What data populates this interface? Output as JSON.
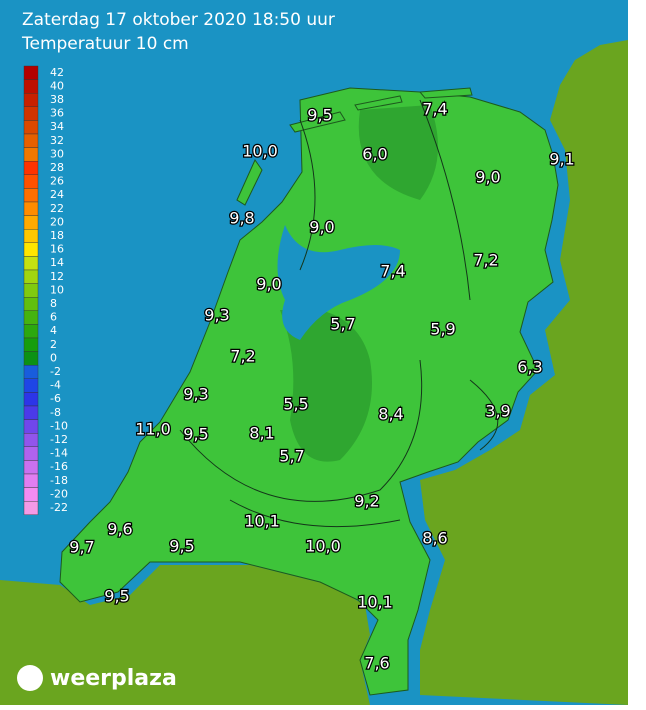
{
  "header": {
    "title": "Zaterdag 17 oktober 2020 18:50 uur",
    "subtitle": "Temperatuur 10 cm"
  },
  "legend": {
    "ticks": [
      42,
      40,
      38,
      36,
      34,
      32,
      30,
      28,
      26,
      24,
      22,
      20,
      18,
      16,
      14,
      12,
      10,
      8,
      6,
      4,
      2,
      0,
      -2,
      -4,
      -6,
      -8,
      -10,
      -12,
      -14,
      -16,
      -18,
      -20,
      -22
    ]
  },
  "stations": [
    "9,5",
    "7,4",
    "10,0",
    "6,0",
    "9,1",
    "9,0",
    "9,8",
    "9,0",
    "7,4",
    "7,2",
    "9,0",
    "9,3",
    "5,7",
    "5,9",
    "7,2",
    "6,3",
    "9,3",
    "5,5",
    "8,4",
    "3,9",
    "11,0",
    "9,5",
    "8,1",
    "5,7",
    "9,2",
    "9,6",
    "10,1",
    "8,6",
    "9,7",
    "9,5",
    "10,0",
    "9,5",
    "10,1",
    "7,6"
  ],
  "logo": "weerplaza"
}
